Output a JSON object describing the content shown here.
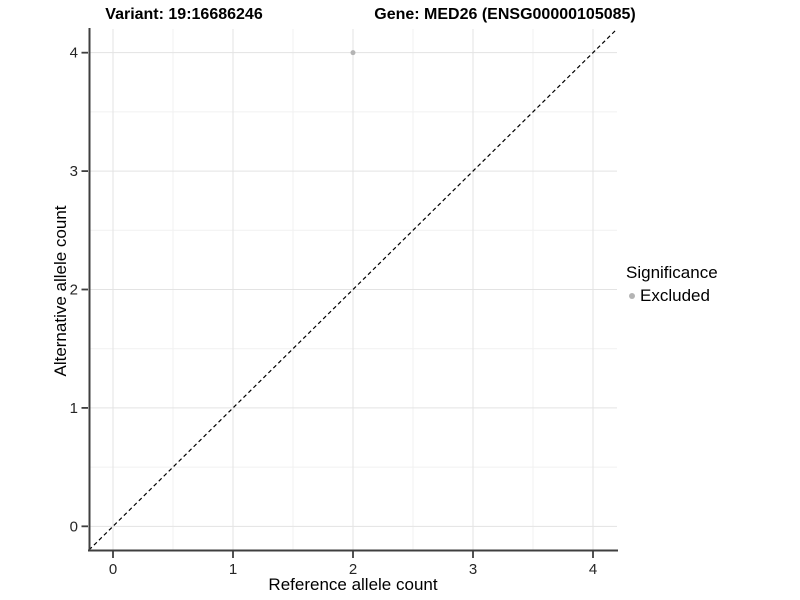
{
  "chart_data": {
    "type": "scatter",
    "titles": {
      "left": "Variant: 19:16686246",
      "right": "Gene: MED26 (ENSG00000105085)"
    },
    "xlabel": "Reference allele count",
    "ylabel": "Alternative allele count",
    "xlim": [
      -0.2,
      4.2
    ],
    "ylim": [
      -0.2,
      4.2
    ],
    "xticks": [
      0,
      1,
      2,
      3,
      4
    ],
    "yticks": [
      0,
      1,
      2,
      3,
      4
    ],
    "xticks_minor": [
      0.5,
      1.5,
      2.5,
      3.5
    ],
    "yticks_minor": [
      0.5,
      1.5,
      2.5,
      3.5
    ],
    "grid": "major+minor",
    "identity_line": {
      "slope": 1,
      "intercept": 0,
      "style": "dashed",
      "color": "#000000"
    },
    "series": [
      {
        "name": "Excluded",
        "color": "#b4b4b4",
        "points": [
          {
            "x": 2,
            "y": 4
          }
        ]
      }
    ],
    "legend": {
      "title": "Significance",
      "position": "right",
      "items": [
        {
          "label": "Excluded",
          "color": "#b4b4b4"
        }
      ]
    }
  },
  "colors": {
    "background": "#ffffff",
    "grid_major": "#e3e3e3",
    "grid_minor": "#f1f1f1",
    "axis_line": "#3f3f3f",
    "tick_label": "#262626"
  }
}
